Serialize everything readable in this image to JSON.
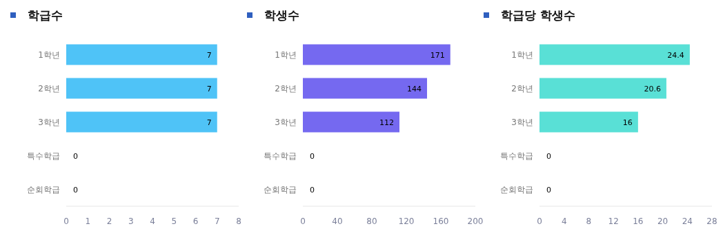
{
  "chart_data": [
    {
      "type": "bar",
      "orientation": "horizontal",
      "title": "학급수",
      "categories": [
        "1학년",
        "2학년",
        "3학년",
        "특수학급",
        "순회학급"
      ],
      "values": [
        7,
        7,
        7,
        0,
        0
      ],
      "color": "#4fc3f7",
      "xlim": [
        0,
        8
      ],
      "xticks": [
        0,
        1,
        2,
        3,
        4,
        5,
        6,
        7,
        8
      ],
      "data_labels": true
    },
    {
      "type": "bar",
      "orientation": "horizontal",
      "title": "학생수",
      "categories": [
        "1학년",
        "2학년",
        "3학년",
        "특수학급",
        "순회학급"
      ],
      "values": [
        171,
        144,
        112,
        0,
        0
      ],
      "color": "#7569f0",
      "xlim": [
        0,
        200
      ],
      "xticks": [
        0,
        40,
        80,
        120,
        160,
        200
      ],
      "data_labels": true
    },
    {
      "type": "bar",
      "orientation": "horizontal",
      "title": "학급당 학생수",
      "categories": [
        "1학년",
        "2학년",
        "3학년",
        "특수학급",
        "순회학급"
      ],
      "values": [
        24.4,
        20.6,
        16,
        0,
        0
      ],
      "color": "#59e0d6",
      "xlim": [
        0,
        28
      ],
      "xticks": [
        0,
        4,
        8,
        12,
        16,
        20,
        24,
        28
      ],
      "data_labels": true
    }
  ]
}
